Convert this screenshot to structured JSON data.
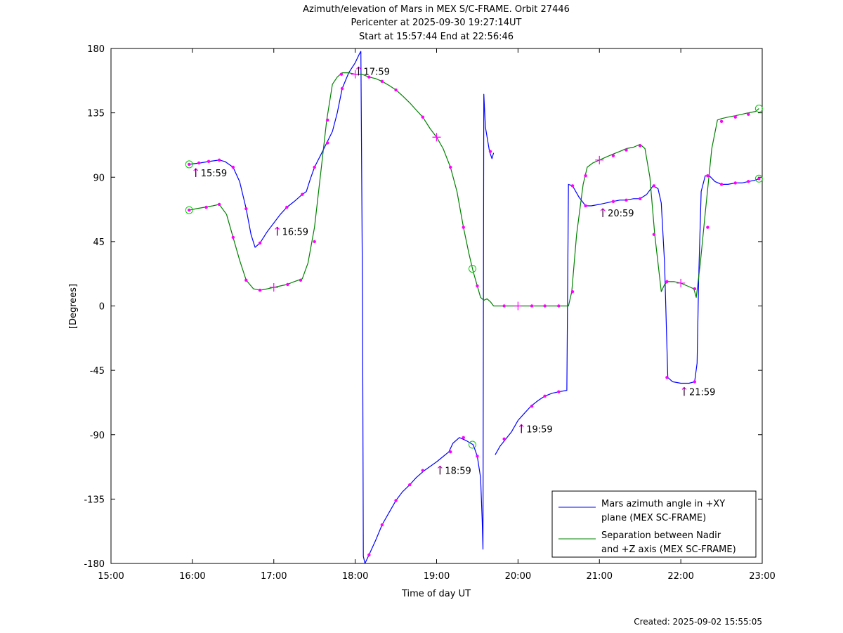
{
  "chart_data": {
    "type": "line",
    "title_lines": [
      "Azimuth/elevation of Mars in MEX S/C-FRAME.  Orbit 27446",
      "Pericenter at 2025-09-30 19:27:14UT",
      "Start at 15:57:44 End at 22:56:46"
    ],
    "xlabel": "Time of day UT",
    "ylabel": "[Degrees]",
    "xlim": [
      15.0,
      23.0
    ],
    "ylim": [
      -180,
      180
    ],
    "x_ticks": [
      {
        "value": 15,
        "label": "15:00"
      },
      {
        "value": 16,
        "label": "16:00"
      },
      {
        "value": 17,
        "label": "17:00"
      },
      {
        "value": 18,
        "label": "18:00"
      },
      {
        "value": 19,
        "label": "19:00"
      },
      {
        "value": 20,
        "label": "20:00"
      },
      {
        "value": 21,
        "label": "21:00"
      },
      {
        "value": 22,
        "label": "22:00"
      },
      {
        "value": 23,
        "label": "23:00"
      }
    ],
    "y_ticks": [
      {
        "value": 180,
        "label": "180"
      },
      {
        "value": 135,
        "label": "135"
      },
      {
        "value": 90,
        "label": "90"
      },
      {
        "value": 45,
        "label": "45"
      },
      {
        "value": 0,
        "label": "0"
      },
      {
        "value": -45,
        "label": "-45"
      },
      {
        "value": -90,
        "label": "-90"
      },
      {
        "value": -135,
        "label": "-135"
      },
      {
        "value": -180,
        "label": "-180"
      }
    ],
    "grid": false,
    "legend_position": "bottom-right",
    "series": [
      {
        "name": "Mars azimuth angle in +XY plane (MEX SC-FRAME)",
        "legend_lines": [
          "Mars azimuth angle in +XY",
          "plane (MEX SC-FRAME)"
        ],
        "color": "#0000ff",
        "segments": [
          [
            [
              15.96,
              99
            ],
            [
              16.1,
              100
            ],
            [
              16.2,
              101
            ],
            [
              16.33,
              102
            ],
            [
              16.4,
              101
            ],
            [
              16.5,
              97
            ],
            [
              16.58,
              87
            ],
            [
              16.66,
              68
            ],
            [
              16.72,
              50
            ],
            [
              16.77,
              41
            ],
            [
              16.83,
              44
            ],
            [
              16.92,
              52
            ],
            [
              17.0,
              58
            ],
            [
              17.08,
              64
            ],
            [
              17.16,
              69
            ],
            [
              17.25,
              73
            ],
            [
              17.35,
              78
            ],
            [
              17.4,
              80
            ],
            [
              17.45,
              89
            ],
            [
              17.5,
              97
            ],
            [
              17.58,
              106
            ],
            [
              17.65,
              114
            ],
            [
              17.72,
              122
            ],
            [
              17.78,
              135
            ],
            [
              17.84,
              152
            ],
            [
              17.92,
              163
            ],
            [
              18.0,
              170
            ],
            [
              18.05,
              176
            ],
            [
              18.07,
              178
            ],
            [
              18.09,
              0
            ],
            [
              18.1,
              -175
            ],
            [
              18.12,
              -180
            ]
          ],
          [
            [
              18.12,
              -180
            ],
            [
              18.17,
              -174
            ],
            [
              18.25,
              -164
            ],
            [
              18.33,
              -153
            ],
            [
              18.42,
              -144
            ],
            [
              18.5,
              -136
            ],
            [
              18.58,
              -130
            ],
            [
              18.67,
              -125
            ],
            [
              18.75,
              -120
            ],
            [
              18.85,
              -115
            ],
            [
              19.0,
              -109
            ],
            [
              19.15,
              -102
            ],
            [
              19.2,
              -96
            ],
            [
              19.28,
              -92
            ],
            [
              19.36,
              -94
            ],
            [
              19.45,
              -97
            ],
            [
              19.5,
              -105
            ],
            [
              19.54,
              -120
            ],
            [
              19.56,
              -150
            ],
            [
              19.57,
              -170
            ],
            [
              19.58,
              148
            ],
            [
              19.6,
              125
            ],
            [
              19.65,
              108
            ],
            [
              19.68,
              103
            ],
            [
              19.7,
              107
            ]
          ],
          [
            [
              19.72,
              -104
            ],
            [
              19.78,
              -98
            ],
            [
              19.85,
              -93
            ],
            [
              19.92,
              -88
            ],
            [
              20.0,
              -80
            ],
            [
              20.08,
              -75
            ],
            [
              20.16,
              -70
            ],
            [
              20.25,
              -66
            ],
            [
              20.33,
              -63
            ],
            [
              20.42,
              -61
            ],
            [
              20.5,
              -60
            ],
            [
              20.6,
              -59
            ],
            [
              20.62,
              85
            ],
            [
              20.67,
              84
            ],
            [
              20.75,
              76
            ],
            [
              20.83,
              70
            ],
            [
              20.9,
              70
            ],
            [
              21.0,
              71
            ],
            [
              21.08,
              72
            ],
            [
              21.16,
              73
            ],
            [
              21.25,
              74
            ],
            [
              21.33,
              74
            ],
            [
              21.42,
              75
            ],
            [
              21.5,
              75
            ],
            [
              21.58,
              78
            ],
            [
              21.66,
              84
            ],
            [
              21.72,
              82
            ],
            [
              21.76,
              72
            ],
            [
              21.8,
              30
            ],
            [
              21.84,
              -50
            ],
            [
              21.9,
              -53
            ],
            [
              22.0,
              -54
            ],
            [
              22.1,
              -54
            ],
            [
              22.17,
              -53
            ],
            [
              22.2,
              -40
            ],
            [
              22.22,
              20
            ],
            [
              22.25,
              80
            ],
            [
              22.3,
              91
            ],
            [
              22.35,
              91
            ],
            [
              22.42,
              87
            ],
            [
              22.5,
              85
            ],
            [
              22.58,
              85
            ],
            [
              22.67,
              86
            ],
            [
              22.75,
              86
            ],
            [
              22.83,
              87
            ],
            [
              22.92,
              88
            ],
            [
              22.96,
              89
            ]
          ]
        ]
      },
      {
        "name": "Separation between Nadir and +Z axis (MEX SC-FRAME)",
        "legend_lines": [
          "Separation between Nadir",
          "and +Z axis (MEX SC-FRAME)"
        ],
        "color": "#008000",
        "segments": [
          [
            [
              15.96,
              67
            ],
            [
              16.05,
              68
            ],
            [
              16.15,
              69
            ],
            [
              16.25,
              70
            ],
            [
              16.33,
              71
            ],
            [
              16.42,
              64
            ],
            [
              16.5,
              48
            ],
            [
              16.58,
              32
            ],
            [
              16.66,
              18
            ],
            [
              16.75,
              12
            ],
            [
              16.83,
              11
            ],
            [
              16.92,
              12
            ],
            [
              17.0,
              13
            ],
            [
              17.08,
              14
            ],
            [
              17.16,
              15
            ],
            [
              17.25,
              17
            ],
            [
              17.35,
              19
            ],
            [
              17.42,
              30
            ],
            [
              17.5,
              55
            ],
            [
              17.58,
              95
            ],
            [
              17.65,
              130
            ],
            [
              17.72,
              155
            ],
            [
              17.78,
              160
            ],
            [
              17.84,
              163
            ],
            [
              17.92,
              163
            ],
            [
              18.0,
              162
            ],
            [
              18.08,
              162
            ],
            [
              18.17,
              160
            ],
            [
              18.25,
              159
            ],
            [
              18.33,
              157
            ],
            [
              18.42,
              154
            ],
            [
              18.5,
              151
            ],
            [
              18.58,
              147
            ],
            [
              18.67,
              142
            ],
            [
              18.75,
              137
            ],
            [
              18.83,
              132
            ],
            [
              18.92,
              124
            ],
            [
              19.0,
              118
            ],
            [
              19.08,
              110
            ],
            [
              19.17,
              97
            ],
            [
              19.25,
              80
            ],
            [
              19.33,
              55
            ],
            [
              19.4,
              36
            ],
            [
              19.45,
              24
            ],
            [
              19.5,
              14
            ],
            [
              19.54,
              6
            ],
            [
              19.58,
              4
            ],
            [
              19.62,
              5
            ],
            [
              19.66,
              3
            ],
            [
              19.7,
              0
            ],
            [
              19.8,
              0
            ],
            [
              19.9,
              0
            ],
            [
              20.0,
              0
            ],
            [
              20.1,
              0
            ],
            [
              20.2,
              0
            ],
            [
              20.3,
              0
            ],
            [
              20.42,
              0
            ],
            [
              20.5,
              0
            ],
            [
              20.62,
              0
            ],
            [
              20.66,
              10
            ],
            [
              20.72,
              50
            ],
            [
              20.8,
              85
            ],
            [
              20.85,
              97
            ],
            [
              20.92,
              100
            ],
            [
              21.0,
              102
            ],
            [
              21.08,
              104
            ],
            [
              21.16,
              106
            ],
            [
              21.25,
              108
            ],
            [
              21.33,
              110
            ],
            [
              21.42,
              111
            ],
            [
              21.5,
              113
            ],
            [
              21.56,
              110
            ],
            [
              21.62,
              90
            ],
            [
              21.68,
              50
            ],
            [
              21.74,
              20
            ],
            [
              21.76,
              10
            ],
            [
              21.8,
              15
            ],
            [
              21.84,
              17
            ],
            [
              21.92,
              17
            ],
            [
              22.0,
              16
            ],
            [
              22.08,
              14
            ],
            [
              22.16,
              12
            ],
            [
              22.19,
              6
            ],
            [
              22.24,
              30
            ],
            [
              22.3,
              65
            ],
            [
              22.38,
              110
            ],
            [
              22.45,
              130
            ],
            [
              22.5,
              131
            ],
            [
              22.58,
              132
            ],
            [
              22.67,
              133
            ],
            [
              22.75,
              134
            ],
            [
              22.83,
              135
            ],
            [
              22.92,
              136
            ],
            [
              22.96,
              138
            ]
          ]
        ]
      }
    ],
    "magenta_dots": [
      [
        15.96,
        99
      ],
      [
        16.08,
        100
      ],
      [
        16.2,
        101
      ],
      [
        16.33,
        102
      ],
      [
        16.5,
        97
      ],
      [
        16.66,
        68
      ],
      [
        16.83,
        44
      ],
      [
        17.16,
        69
      ],
      [
        17.35,
        78
      ],
      [
        17.5,
        97
      ],
      [
        17.66,
        114
      ],
      [
        17.84,
        152
      ],
      [
        18.17,
        -174
      ],
      [
        18.33,
        -153
      ],
      [
        18.5,
        -136
      ],
      [
        18.67,
        -125
      ],
      [
        18.83,
        -115
      ],
      [
        19.17,
        -102
      ],
      [
        19.33,
        -92
      ],
      [
        19.5,
        -105
      ],
      [
        19.66,
        108
      ],
      [
        19.83,
        -93
      ],
      [
        20.17,
        -70
      ],
      [
        20.33,
        -63
      ],
      [
        20.5,
        -60
      ],
      [
        20.67,
        84
      ],
      [
        20.83,
        70
      ],
      [
        21.17,
        73
      ],
      [
        21.33,
        74
      ],
      [
        21.5,
        75
      ],
      [
        21.67,
        84
      ],
      [
        21.83,
        -50
      ],
      [
        22.17,
        -53
      ],
      [
        22.33,
        91
      ],
      [
        22.5,
        85
      ],
      [
        22.67,
        86
      ],
      [
        22.83,
        87
      ],
      [
        15.96,
        67
      ],
      [
        16.17,
        69
      ],
      [
        16.33,
        71
      ],
      [
        16.5,
        48
      ],
      [
        16.66,
        18
      ],
      [
        16.83,
        11
      ],
      [
        17.17,
        15
      ],
      [
        17.33,
        18
      ],
      [
        17.5,
        45
      ],
      [
        17.66,
        130
      ],
      [
        17.83,
        162
      ],
      [
        18.17,
        160
      ],
      [
        18.33,
        157
      ],
      [
        18.5,
        151
      ],
      [
        18.83,
        132
      ],
      [
        19.17,
        97
      ],
      [
        19.33,
        55
      ],
      [
        19.5,
        14
      ],
      [
        19.83,
        0
      ],
      [
        20.17,
        0
      ],
      [
        20.33,
        0
      ],
      [
        20.5,
        0
      ],
      [
        20.67,
        10
      ],
      [
        20.83,
        91
      ],
      [
        21.17,
        105
      ],
      [
        21.33,
        109
      ],
      [
        21.5,
        112
      ],
      [
        21.67,
        50
      ],
      [
        21.83,
        17
      ],
      [
        22.17,
        12
      ],
      [
        22.33,
        55
      ],
      [
        22.5,
        129
      ],
      [
        22.67,
        132
      ],
      [
        22.83,
        134
      ],
      [
        22.96,
        89
      ]
    ],
    "hour_markers": [
      {
        "x": 15.99,
        "y": 99,
        "label": "15:59"
      },
      {
        "x": 16.99,
        "y": 58,
        "label": "16:59"
      },
      {
        "x": 17.99,
        "y": 170,
        "label": "17:59"
      },
      {
        "x": 18.99,
        "y": -109,
        "label": "18:59"
      },
      {
        "x": 19.99,
        "y": -80,
        "label": "19:59"
      },
      {
        "x": 20.99,
        "y": 71,
        "label": "20:59"
      },
      {
        "x": 21.99,
        "y": -54,
        "label": "21:59"
      }
    ],
    "plus_markers": [
      [
        17.0,
        13
      ],
      [
        18.0,
        162
      ],
      [
        19.0,
        118
      ],
      [
        20.0,
        0
      ],
      [
        21.0,
        102
      ],
      [
        22.0,
        16
      ]
    ],
    "circle_markers": [
      [
        15.96,
        99
      ],
      [
        15.96,
        67
      ],
      [
        19.44,
        26
      ],
      [
        19.44,
        -97
      ],
      [
        22.96,
        89
      ],
      [
        22.96,
        138
      ]
    ],
    "dot_color": "#ff00ff",
    "circle_color": "#00cc00",
    "created_text": "Created: 2025-09-02 15:55:05"
  }
}
